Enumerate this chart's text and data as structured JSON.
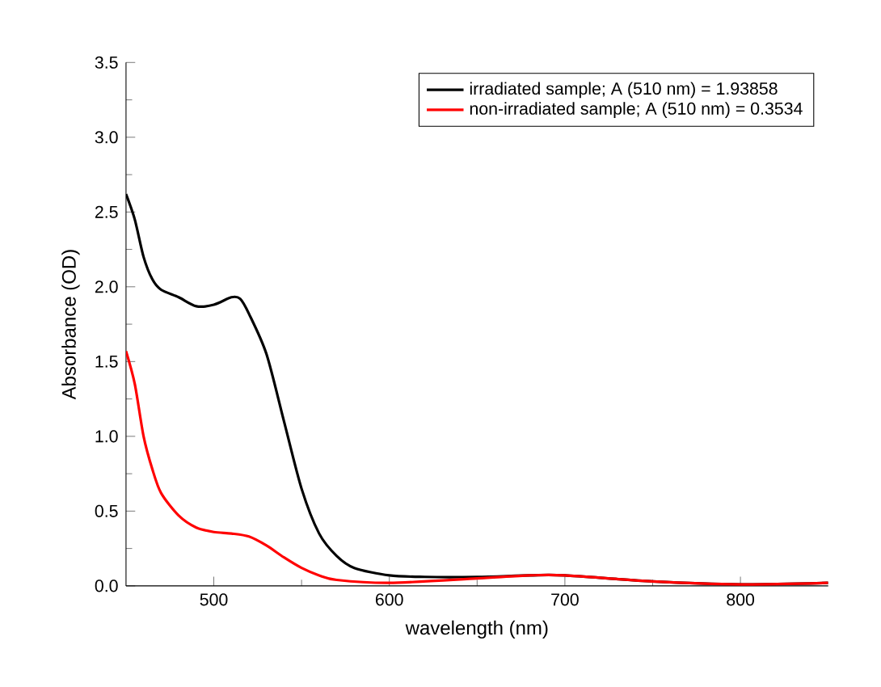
{
  "chart_data": {
    "type": "line",
    "xlabel": "wavelength (nm)",
    "ylabel": "Absorbance (OD)",
    "xlim": [
      450,
      850
    ],
    "ylim": [
      0,
      3.5
    ],
    "xticks": [
      500,
      600,
      700,
      800
    ],
    "yticks": [
      {
        "value": 0,
        "label": "0.0"
      },
      {
        "value": 0.5,
        "label": "0.5"
      },
      {
        "value": 1,
        "label": "1.0"
      },
      {
        "value": 1.5,
        "label": "1.5"
      },
      {
        "value": 2,
        "label": "2.0"
      },
      {
        "value": 2.5,
        "label": "2.5"
      },
      {
        "value": 3,
        "label": "3.0"
      },
      {
        "value": 3.5,
        "label": "3.5"
      }
    ],
    "legend": "top right",
    "grid": false,
    "marker": "none",
    "line_style": "solid",
    "series": [
      {
        "name": "irradiated sample; A (510 nm) = 1.93858",
        "color": "#000000",
        "x": [
          450,
          455,
          460,
          465,
          470,
          480,
          490,
          500,
          510,
          515,
          520,
          530,
          540,
          550,
          560,
          570,
          580,
          600,
          620,
          650,
          680,
          700,
          750,
          800,
          850
        ],
        "values": [
          2.62,
          2.45,
          2.2,
          2.05,
          1.98,
          1.93,
          1.87,
          1.88,
          1.93,
          1.92,
          1.82,
          1.55,
          1.1,
          0.65,
          0.35,
          0.2,
          0.12,
          0.07,
          0.06,
          0.06,
          0.07,
          0.07,
          0.03,
          0.01,
          0.02
        ]
      },
      {
        "name": "non-irradiated sample; A (510 nm) = 0.3534",
        "color": "#ff0000",
        "x": [
          450,
          455,
          460,
          465,
          470,
          480,
          490,
          500,
          510,
          520,
          530,
          540,
          550,
          560,
          570,
          600,
          650,
          680,
          700,
          750,
          800,
          850
        ],
        "values": [
          1.57,
          1.35,
          1.0,
          0.78,
          0.62,
          0.47,
          0.39,
          0.36,
          0.35,
          0.33,
          0.27,
          0.19,
          0.12,
          0.07,
          0.04,
          0.02,
          0.05,
          0.07,
          0.07,
          0.03,
          0.01,
          0.02
        ]
      }
    ]
  }
}
